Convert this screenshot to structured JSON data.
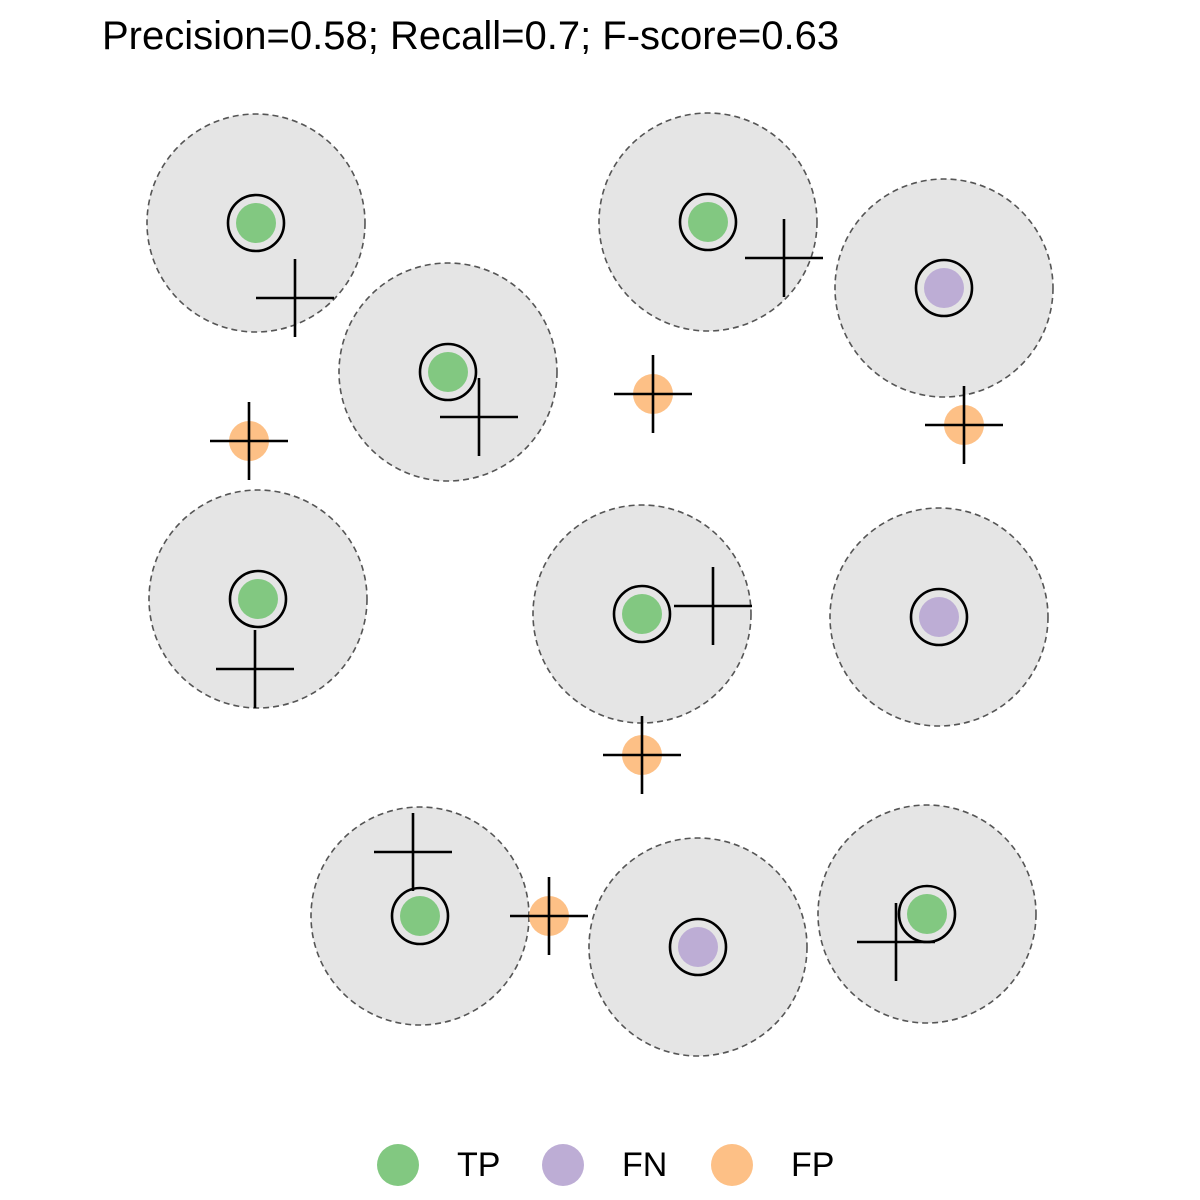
{
  "chart_data": {
    "type": "scatter",
    "title": "Precision=0.58; Recall=0.7; F-score=0.63",
    "metrics": {
      "precision": 0.58,
      "recall": 0.7,
      "f_score": 0.63
    },
    "xlim": [
      0,
      12
    ],
    "ylim": [
      0,
      12
    ],
    "grid": false,
    "legend_position": "bottom",
    "categories": [
      "TP",
      "FN",
      "FP"
    ],
    "colors": {
      "TP": "#82c881",
      "FN": "#bdadd5",
      "FP": "#fdc086",
      "region": "#e5e5e5"
    },
    "ground_truth": [
      {
        "x": 2.56,
        "y": 9.77,
        "class": "TP"
      },
      {
        "x": 7.08,
        "y": 9.78,
        "class": "TP"
      },
      {
        "x": 9.44,
        "y": 9.12,
        "class": "FN"
      },
      {
        "x": 4.48,
        "y": 8.28,
        "class": "TP"
      },
      {
        "x": 2.58,
        "y": 6.01,
        "class": "TP"
      },
      {
        "x": 6.42,
        "y": 5.86,
        "class": "TP"
      },
      {
        "x": 9.39,
        "y": 5.83,
        "class": "FN"
      },
      {
        "x": 4.2,
        "y": 2.84,
        "class": "TP"
      },
      {
        "x": 6.98,
        "y": 2.53,
        "class": "FN"
      },
      {
        "x": 9.27,
        "y": 2.86,
        "class": "TP"
      }
    ],
    "predictions": [
      {
        "x": 2.95,
        "y": 9.02,
        "class": "TP"
      },
      {
        "x": 7.84,
        "y": 9.42,
        "class": "TP"
      },
      {
        "x": 4.79,
        "y": 7.83,
        "class": "TP"
      },
      {
        "x": 2.49,
        "y": 7.59,
        "class": "FP"
      },
      {
        "x": 6.53,
        "y": 8.06,
        "class": "FP"
      },
      {
        "x": 9.64,
        "y": 7.75,
        "class": "FP"
      },
      {
        "x": 2.55,
        "y": 5.31,
        "class": "TP"
      },
      {
        "x": 7.13,
        "y": 5.94,
        "class": "TP"
      },
      {
        "x": 6.42,
        "y": 4.45,
        "class": "FP"
      },
      {
        "x": 4.13,
        "y": 3.48,
        "class": "TP"
      },
      {
        "x": 5.49,
        "y": 2.84,
        "class": "FP"
      },
      {
        "x": 8.96,
        "y": 2.58,
        "class": "TP"
      }
    ]
  },
  "legend": {
    "items": [
      {
        "label": "TP",
        "color": "#82c881"
      },
      {
        "label": "FN",
        "color": "#bdadd5"
      },
      {
        "label": "FP",
        "color": "#fdc086"
      }
    ]
  }
}
